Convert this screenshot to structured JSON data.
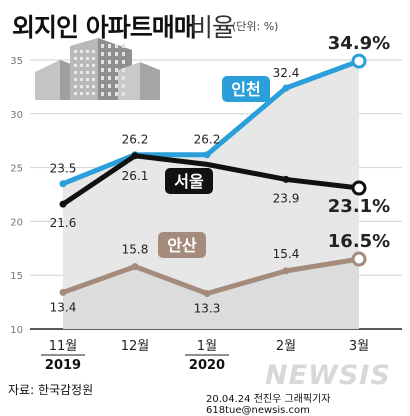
{
  "title": "외지인 아파트매매",
  "title_light": "비율",
  "unit": "(단위: %)",
  "source": "자료: 한국감정원",
  "credit": "20.04.24 전진우 그래픽기자 618tue@newsis.com",
  "watermark": "NEWSIS",
  "chart_data": {
    "type": "line",
    "categories": [
      "11월",
      "12월",
      "1월",
      "2월",
      "3월"
    ],
    "year_labels": [
      {
        "under": "11월",
        "text": "2019"
      },
      {
        "under": "1월",
        "text": "2020"
      }
    ],
    "yticks": [
      10,
      15,
      20,
      25,
      30,
      35
    ],
    "ylim": [
      10,
      36
    ],
    "series": [
      {
        "name": "인천",
        "values": [
          23.5,
          26.2,
          26.2,
          32.4,
          34.9
        ],
        "labels": [
          "23.5",
          "26.2",
          "26.2",
          "32.4",
          "34.9%"
        ],
        "color": "#2b9fd9"
      },
      {
        "name": "서울",
        "values": [
          21.6,
          26.1,
          25.3,
          23.9,
          23.1
        ],
        "labels": [
          "21.6",
          "26.1",
          "",
          "23.9",
          "23.1%"
        ],
        "color": "#111111"
      },
      {
        "name": "안산",
        "values": [
          13.4,
          15.8,
          13.3,
          15.4,
          16.5
        ],
        "labels": [
          "13.4",
          "15.8",
          "13.3",
          "15.4",
          "16.5%"
        ],
        "color": "#a58b7c"
      }
    ]
  }
}
